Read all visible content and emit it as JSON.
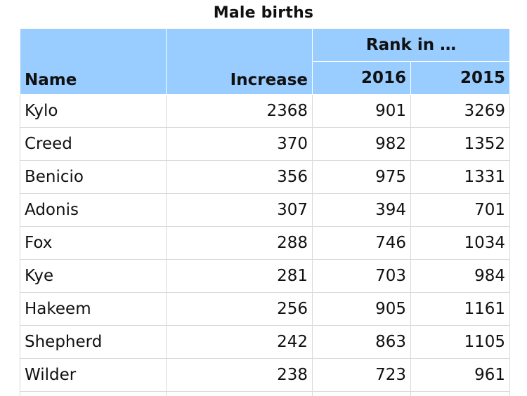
{
  "caption": "Male births",
  "headers": {
    "name": "Name",
    "increase": "Increase",
    "rank_group": "Rank in …",
    "year_2016": "2016",
    "year_2015": "2015"
  },
  "rows": [
    {
      "name": "Kylo",
      "increase": "2368",
      "rank_2016": "901",
      "rank_2015": "3269"
    },
    {
      "name": "Creed",
      "increase": "370",
      "rank_2016": "982",
      "rank_2015": "1352"
    },
    {
      "name": "Benicio",
      "increase": "356",
      "rank_2016": "975",
      "rank_2015": "1331"
    },
    {
      "name": "Adonis",
      "increase": "307",
      "rank_2016": "394",
      "rank_2015": "701"
    },
    {
      "name": "Fox",
      "increase": "288",
      "rank_2016": "746",
      "rank_2015": "1034"
    },
    {
      "name": "Kye",
      "increase": "281",
      "rank_2016": "703",
      "rank_2015": "984"
    },
    {
      "name": "Hakeem",
      "increase": "256",
      "rank_2016": "905",
      "rank_2015": "1161"
    },
    {
      "name": "Shepherd",
      "increase": "242",
      "rank_2016": "863",
      "rank_2015": "1105"
    },
    {
      "name": "Wilder",
      "increase": "238",
      "rank_2016": "723",
      "rank_2015": "961"
    }
  ],
  "colors": {
    "header_bg": "#99ccff",
    "grid": "#d9d9d9"
  }
}
